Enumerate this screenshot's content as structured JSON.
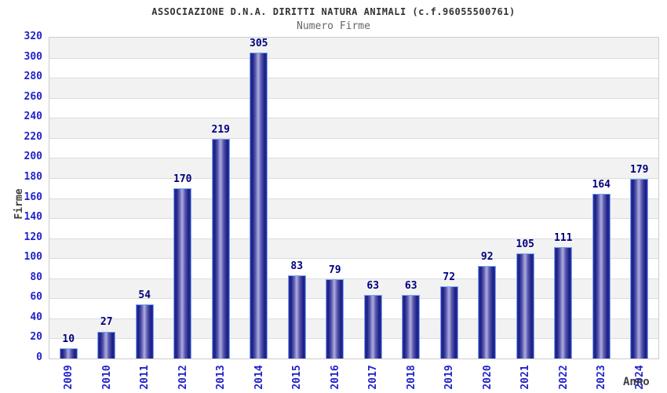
{
  "header": {
    "title": "ASSOCIAZIONE D.N.A. DIRITTI NATURA ANIMALI (c.f.96055500761)",
    "subtitle": "Numero Firme"
  },
  "chart_data": {
    "type": "bar",
    "title": "ASSOCIAZIONE D.N.A. DIRITTI NATURA ANIMALI (c.f.96055500761)",
    "subtitle": "Numero Firme",
    "categories": [
      "2009",
      "2010",
      "2011",
      "2012",
      "2013",
      "2014",
      "2015",
      "2016",
      "2017",
      "2018",
      "2019",
      "2020",
      "2021",
      "2022",
      "2023",
      "2024"
    ],
    "values": [
      10,
      27,
      54,
      170,
      219,
      305,
      83,
      79,
      63,
      63,
      72,
      92,
      105,
      111,
      164,
      179
    ],
    "xlabel": "Anno",
    "ylabel": "Firme",
    "ylim": [
      0,
      320
    ],
    "ytick_step": 20,
    "yticks": [
      0,
      20,
      40,
      60,
      80,
      100,
      120,
      140,
      160,
      180,
      200,
      220,
      240,
      260,
      280,
      300,
      320
    ],
    "grid": true,
    "legend": "none",
    "data_labels": true,
    "colors": {
      "bar_dark": "#1c1c84",
      "bar_light": "#aeaede",
      "bar_border": "#70a8f0",
      "tick_label": "#2222cc",
      "data_label": "#00007d",
      "band_gray": "#f2f2f2",
      "band_white": "#ffffff",
      "gridline": "#dcdcdc",
      "plot_border": "#cccccc",
      "title_color": "#333333",
      "subtitle_color": "#666666",
      "axis_label_color": "#404040"
    }
  }
}
